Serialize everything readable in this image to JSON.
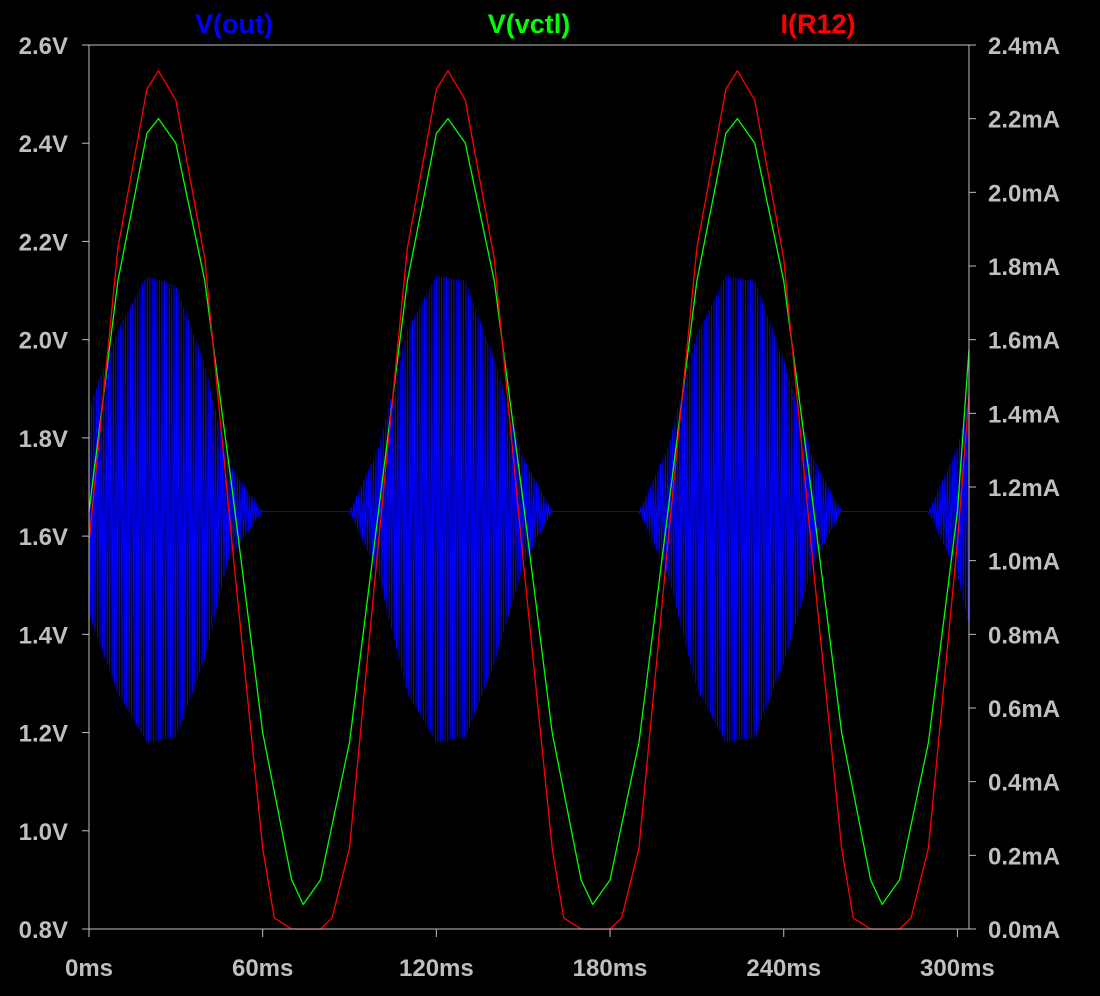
{
  "chart_data": {
    "type": "line",
    "title": "",
    "xlabel": "",
    "ylabel": "",
    "ylabel_right": "",
    "grid": false,
    "legend": "top, above plot",
    "colors": {
      "background": "#000000",
      "axes": "#bfbfbf",
      "tick_text": "#bfbfbf"
    },
    "x_axis": {
      "unit": "ms",
      "range": [
        0,
        304
      ],
      "ticks": [
        0,
        60,
        120,
        180,
        240,
        300
      ],
      "tick_labels": [
        "0ms",
        "60ms",
        "120ms",
        "180ms",
        "240ms",
        "300ms"
      ]
    },
    "y_left": {
      "unit": "V",
      "range": [
        0.8,
        2.6
      ],
      "ticks": [
        0.8,
        1.0,
        1.2,
        1.4,
        1.6,
        1.8,
        2.0,
        2.2,
        2.4,
        2.6
      ],
      "tick_labels": [
        "0.8V",
        "1.0V",
        "1.2V",
        "1.4V",
        "1.6V",
        "1.8V",
        "2.0V",
        "2.2V",
        "2.4V",
        "2.6V"
      ]
    },
    "y_right": {
      "unit": "mA",
      "range": [
        0.0,
        2.4
      ],
      "ticks": [
        0.0,
        0.2,
        0.4,
        0.6,
        0.8,
        1.0,
        1.2,
        1.4,
        1.6,
        1.8,
        2.0,
        2.2,
        2.4
      ],
      "tick_labels": [
        "0.0mA",
        "0.2mA",
        "0.4mA",
        "0.6mA",
        "0.8mA",
        "1.0mA",
        "1.2mA",
        "1.4mA",
        "1.6mA",
        "1.8mA",
        "2.0mA",
        "2.2mA",
        "2.4mA"
      ]
    },
    "series": [
      {
        "name": "V(out)",
        "color": "#0000ff",
        "axis": "left",
        "style": "oscillating burst, amplitude follows V(vctl) above ~1.6V",
        "envelope": {
          "x": [
            0,
            10,
            20,
            30,
            40,
            48,
            60,
            90,
            100,
            110,
            120,
            130,
            140,
            150,
            160,
            190,
            200,
            210,
            220,
            230,
            240,
            250,
            260,
            290,
            300,
            304
          ],
          "upper": [
            1.86,
            2.02,
            2.13,
            2.11,
            1.95,
            1.75,
            1.65,
            1.65,
            1.78,
            2.02,
            2.13,
            2.12,
            1.96,
            1.76,
            1.65,
            1.65,
            1.78,
            2.01,
            2.13,
            2.12,
            1.96,
            1.76,
            1.65,
            1.65,
            1.78,
            1.88
          ],
          "lower": [
            1.44,
            1.28,
            1.18,
            1.19,
            1.35,
            1.55,
            1.65,
            1.65,
            1.52,
            1.28,
            1.18,
            1.19,
            1.34,
            1.54,
            1.65,
            1.65,
            1.52,
            1.29,
            1.18,
            1.19,
            1.34,
            1.54,
            1.65,
            1.65,
            1.52,
            1.42
          ]
        }
      },
      {
        "name": "V(vctl)",
        "color": "#00ff00",
        "axis": "left",
        "x": [
          0,
          10,
          20,
          24,
          30,
          40,
          50,
          60,
          70,
          74,
          80,
          90,
          100,
          110,
          120,
          124,
          130,
          140,
          150,
          160,
          170,
          174,
          180,
          190,
          200,
          210,
          220,
          224,
          230,
          240,
          250,
          260,
          270,
          274,
          280,
          290,
          300,
          304
        ],
        "y": [
          1.65,
          2.12,
          2.42,
          2.45,
          2.4,
          2.12,
          1.67,
          1.2,
          0.9,
          0.85,
          0.9,
          1.18,
          1.65,
          2.12,
          2.42,
          2.45,
          2.4,
          2.12,
          1.67,
          1.2,
          0.9,
          0.85,
          0.9,
          1.18,
          1.65,
          2.12,
          2.42,
          2.45,
          2.4,
          2.12,
          1.67,
          1.2,
          0.9,
          0.85,
          0.9,
          1.18,
          1.65,
          1.98
        ]
      },
      {
        "name": "I(R12)",
        "color": "#ff0000",
        "axis": "right",
        "x": [
          0,
          10,
          20,
          24,
          30,
          40,
          50,
          60,
          64,
          70,
          80,
          84,
          90,
          100,
          110,
          120,
          124,
          130,
          140,
          150,
          160,
          164,
          170,
          180,
          184,
          190,
          200,
          210,
          220,
          224,
          230,
          240,
          250,
          260,
          264,
          270,
          280,
          284,
          290,
          300,
          304
        ],
        "y": [
          1.05,
          1.85,
          2.28,
          2.33,
          2.25,
          1.82,
          1.0,
          0.22,
          0.03,
          0.0,
          0.0,
          0.03,
          0.22,
          1.05,
          1.85,
          2.28,
          2.33,
          2.25,
          1.82,
          1.0,
          0.22,
          0.03,
          0.0,
          0.0,
          0.03,
          0.22,
          1.05,
          1.85,
          2.28,
          2.33,
          2.25,
          1.82,
          1.0,
          0.22,
          0.03,
          0.0,
          0.0,
          0.03,
          0.22,
          1.05,
          1.45
        ]
      }
    ]
  }
}
